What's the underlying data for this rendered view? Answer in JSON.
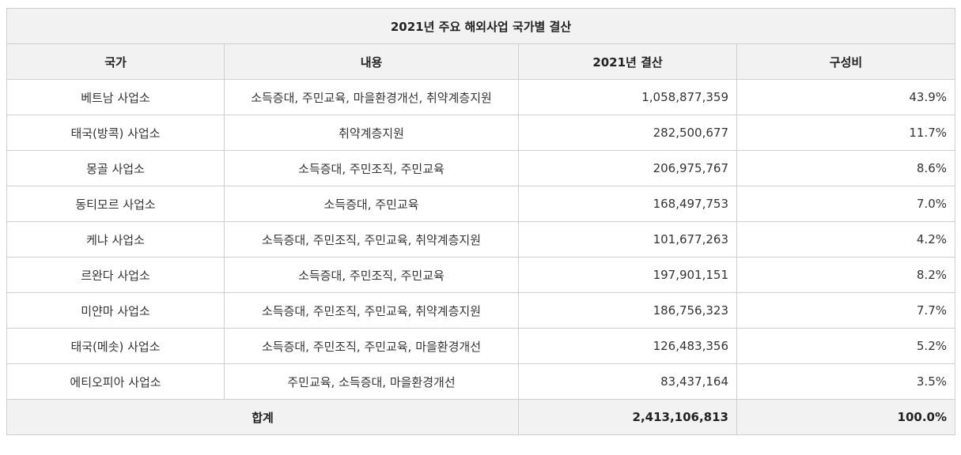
{
  "table": {
    "title": "2021년 주요 해외사업 국가별 결산",
    "headers": [
      "국가",
      "내용",
      "2021년 결산",
      "구성비"
    ],
    "rows": [
      {
        "country": "베트남 사업소",
        "content": "소득증대, 주민교육, 마을환경개선, 취약계층지원",
        "amount": "1,058,877,359",
        "ratio": "43.9%"
      },
      {
        "country": "태국(방콕) 사업소",
        "content": "취약계층지원",
        "amount": "282,500,677",
        "ratio": "11.7%"
      },
      {
        "country": "몽골 사업소",
        "content": "소득증대, 주민조직, 주민교육",
        "amount": "206,975,767",
        "ratio": "8.6%"
      },
      {
        "country": "동티모르 사업소",
        "content": "소득증대, 주민교육",
        "amount": "168,497,753",
        "ratio": "7.0%"
      },
      {
        "country": "케냐 사업소",
        "content": "소득증대, 주민조직, 주민교육, 취약계층지원",
        "amount": "101,677,263",
        "ratio": "4.2%"
      },
      {
        "country": "르완다 사업소",
        "content": "소득증대, 주민조직, 주민교육",
        "amount": "197,901,151",
        "ratio": "8.2%"
      },
      {
        "country": "미얀마 사업소",
        "content": "소득증대, 주민조직, 주민교육, 취약계층지원",
        "amount": "186,756,323",
        "ratio": "7.7%"
      },
      {
        "country": "태국(메솟) 사업소",
        "content": "소득증대, 주민조직, 주민교육, 마을환경개선",
        "amount": "126,483,356",
        "ratio": "5.2%"
      },
      {
        "country": "에티오피아 사업소",
        "content": "주민교육, 소득증대, 마을환경개선",
        "amount": "83,437,164",
        "ratio": "3.5%"
      }
    ],
    "total": {
      "label": "합계",
      "amount": "2,413,106,813",
      "ratio": "100.0%"
    }
  }
}
